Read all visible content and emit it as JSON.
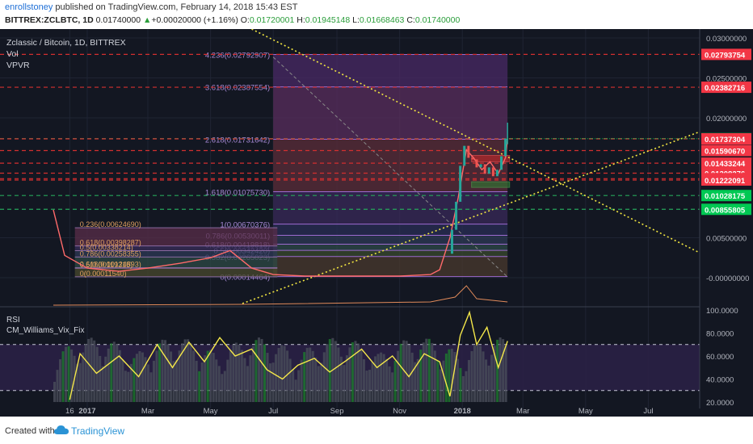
{
  "header": {
    "author": "enrollstoney",
    "published": " published on TradingView.com, February 14, 2018 15:43 EST",
    "symbol": "BITTREX:ZCLBTC, 1D",
    "last": "0.01740000",
    "change_arrow": "▲",
    "change": "+0.00020000 (+1.16%)",
    "o_label": "O:",
    "o_value": "0.01720001",
    "h_label": "H:",
    "h_value": "0.01945148",
    "l_label": "L:",
    "l_value": "0.01668463",
    "c_label": "C:",
    "c_value": "0.01740000"
  },
  "legend": {
    "title": "Zclassic / Bitcoin, 1D, BITTREX",
    "vol": "Vol",
    "vpvr": "VPVR",
    "rsi": "RSI",
    "vix": "CM_Williams_Vix_Fix"
  },
  "footer": {
    "created": "Created with",
    "brand": "TradingView"
  },
  "colors": {
    "background": "#131722",
    "price_line": "#ff6a6a",
    "rsi_line": "#f5e84a",
    "up": "#26a69a",
    "down": "#ef5350",
    "trend_line": "#f2e641",
    "fib_box": "#9c27b0"
  },
  "chart_data": {
    "type": "line",
    "title": "Zclassic / Bitcoin, 1D, BITTREX",
    "x_tick_labels": [
      "16",
      "2017",
      "Mar",
      "May",
      "Jul",
      "Sep",
      "Nov",
      "2018",
      "Mar",
      "May",
      "Jul"
    ],
    "price_axis_ticks": [
      "0.03000000",
      "0.02500000",
      "0.02000000",
      "0.00500000",
      "-0.00000000"
    ],
    "price_ylim": [
      0,
      0.0305
    ],
    "price_series": {
      "name": "ZCLBTC",
      "x": [
        "2016-11-29",
        "2016-12-10",
        "2017-01-01",
        "2017-02-01",
        "2017-03-01",
        "2017-04-01",
        "2017-05-01",
        "2017-05-20",
        "2017-06-10",
        "2017-07-01",
        "2017-08-01",
        "2017-09-01",
        "2017-10-01",
        "2017-11-01",
        "2017-12-01",
        "2017-12-10",
        "2017-12-20",
        "2017-12-28",
        "2018-01-05",
        "2018-01-12",
        "2018-01-20",
        "2018-01-28",
        "2018-02-05",
        "2018-02-12",
        "2018-02-14"
      ],
      "values": [
        0.0085,
        0.0028,
        0.0012,
        0.0008,
        0.0012,
        0.0018,
        0.0025,
        0.0034,
        0.0012,
        0.0004,
        0.0002,
        0.0002,
        0.0002,
        0.0002,
        0.0004,
        0.001,
        0.005,
        0.01,
        0.016,
        0.015,
        0.0135,
        0.0145,
        0.013,
        0.015,
        0.0174
      ]
    },
    "price_labels": [
      {
        "text": "0.02793754",
        "value": 0.02793754,
        "color": "#f23645"
      },
      {
        "text": "0.02382716",
        "value": 0.02382716,
        "color": "#f23645"
      },
      {
        "text": "0.01740000",
        "value": 0.0174,
        "color": "#00c853"
      },
      {
        "text": "0.01737304",
        "value": 0.01737304,
        "color": "#f23645"
      },
      {
        "text": "0.01590670",
        "value": 0.0159067,
        "color": "#f23645"
      },
      {
        "text": "0.01433244",
        "value": 0.01433244,
        "color": "#f23645"
      },
      {
        "text": "0.01308276",
        "value": 0.01308276,
        "color": "#f23645"
      },
      {
        "text": "0.01239404",
        "value": 0.01239404,
        "color": "#f23645"
      },
      {
        "text": "0.01222091",
        "value": 0.01222091,
        "color": "#f23645"
      },
      {
        "text": "0.01028175",
        "value": 0.01028175,
        "color": "#00c853"
      },
      {
        "text": "0.00855805",
        "value": 0.00855805,
        "color": "#00c853"
      }
    ],
    "fib_levels_large": [
      {
        "label": "4.236(0.02792907)",
        "value": 0.02792907
      },
      {
        "label": "3.618(0.02387554)",
        "value": 0.02387554
      },
      {
        "label": "2.618(0.01731642)",
        "value": 0.01731642
      },
      {
        "label": "1.618(0.01075730)",
        "value": 0.0107573
      },
      {
        "label": "1(0.00670376)",
        "value": 0.00670376
      },
      {
        "label": "0.786(0.00530011)",
        "value": 0.00530011
      },
      {
        "label": "0.618(0.00419818)",
        "value": 0.00419818
      },
      {
        "label": "0.5(0.00342420)",
        "value": 0.0034242
      },
      {
        "label": "0.382(0.00265023)",
        "value": 0.00265023
      },
      {
        "label": "0(0.00014464)",
        "value": 0.00014464
      }
    ],
    "fib_levels_small": [
      {
        "label": "0.236(0.00624690)",
        "value": 0.0062469
      },
      {
        "label": "0.618(0.00398287)",
        "value": 0.00398287
      },
      {
        "label": "0.5(0.00338214)",
        "value": 0.00338214
      },
      {
        "label": "0.786(0.00258355)",
        "value": 0.00258355
      },
      {
        "label": "0.618(0.00124893)",
        "value": 0.00124893
      },
      {
        "label": "0.5(0.00119315)",
        "value": 0.00119315
      },
      {
        "label": "0(0.00011540)",
        "value": 0.0001154
      }
    ],
    "rsi_axis_ticks": [
      "100.0000",
      "80.0000",
      "60.0000",
      "40.0000",
      "20.0000"
    ],
    "rsi_ylim": [
      20,
      100
    ],
    "rsi_levels": [
      70,
      30
    ],
    "rsi_series": {
      "name": "RSI",
      "x": [
        "2016-12-15",
        "2016-12-25",
        "2017-01-10",
        "2017-02-01",
        "2017-02-20",
        "2017-03-10",
        "2017-03-25",
        "2017-04-10",
        "2017-04-25",
        "2017-05-10",
        "2017-05-25",
        "2017-06-10",
        "2017-06-25",
        "2017-07-10",
        "2017-07-25",
        "2017-08-10",
        "2017-08-25",
        "2017-09-10",
        "2017-09-25",
        "2017-10-10",
        "2017-10-25",
        "2017-11-10",
        "2017-11-25",
        "2017-12-10",
        "2017-12-20",
        "2017-12-30",
        "2018-01-08",
        "2018-01-15",
        "2018-01-25",
        "2018-02-05",
        "2018-02-14"
      ],
      "values": [
        22,
        62,
        45,
        60,
        42,
        70,
        50,
        72,
        55,
        76,
        60,
        66,
        48,
        40,
        52,
        58,
        46,
        56,
        66,
        50,
        60,
        42,
        62,
        55,
        25,
        78,
        98,
        70,
        85,
        50,
        73
      ]
    }
  }
}
